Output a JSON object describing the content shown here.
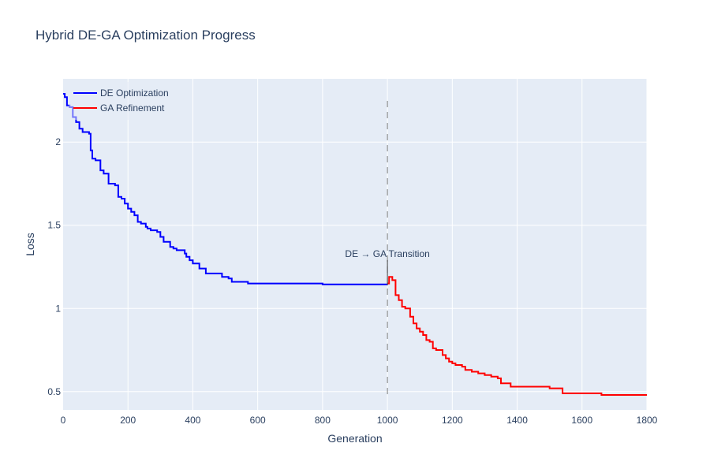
{
  "chart_data": {
    "type": "line",
    "title": "Hybrid DE-GA Optimization Progress",
    "xlabel": "Generation",
    "ylabel": "Loss",
    "xlim": [
      0,
      1800
    ],
    "ylim": [
      0.39,
      2.38
    ],
    "x_ticks": [
      0,
      200,
      400,
      600,
      800,
      1000,
      1200,
      1400,
      1600,
      1800
    ],
    "y_ticks": [
      0.5,
      1,
      1.5,
      2
    ],
    "y_tick_labels": [
      "0.5",
      "1",
      "1.5",
      "2"
    ],
    "grid": true,
    "legend_position": "top-left",
    "series": [
      {
        "name": "DE Optimization",
        "color": "#0000ff",
        "x": [
          0,
          5,
          12,
          20,
          30,
          40,
          50,
          60,
          80,
          85,
          90,
          100,
          115,
          125,
          140,
          160,
          170,
          180,
          190,
          200,
          210,
          220,
          230,
          240,
          255,
          260,
          270,
          290,
          300,
          310,
          330,
          340,
          350,
          375,
          380,
          390,
          400,
          420,
          440,
          450,
          490,
          510,
          520,
          550,
          570,
          660,
          800,
          999
        ],
        "y": [
          2.29,
          2.27,
          2.22,
          2.21,
          2.15,
          2.12,
          2.08,
          2.06,
          2.05,
          1.95,
          1.9,
          1.89,
          1.83,
          1.81,
          1.75,
          1.74,
          1.67,
          1.66,
          1.63,
          1.6,
          1.58,
          1.56,
          1.52,
          1.51,
          1.49,
          1.48,
          1.47,
          1.46,
          1.43,
          1.4,
          1.37,
          1.36,
          1.35,
          1.33,
          1.31,
          1.29,
          1.27,
          1.24,
          1.21,
          1.21,
          1.19,
          1.18,
          1.16,
          1.16,
          1.15,
          1.15,
          1.145,
          1.14
        ]
      },
      {
        "name": "GA Refinement",
        "color": "#ff0000",
        "x": [
          1000,
          1005,
          1015,
          1025,
          1035,
          1045,
          1055,
          1070,
          1080,
          1090,
          1100,
          1110,
          1120,
          1130,
          1140,
          1150,
          1170,
          1180,
          1190,
          1200,
          1210,
          1230,
          1240,
          1260,
          1280,
          1300,
          1320,
          1340,
          1350,
          1380,
          1400,
          1500,
          1540,
          1600,
          1660,
          1720,
          1800
        ],
        "y": [
          1.15,
          1.19,
          1.17,
          1.08,
          1.05,
          1.01,
          1.0,
          0.95,
          0.91,
          0.88,
          0.86,
          0.84,
          0.81,
          0.8,
          0.76,
          0.75,
          0.72,
          0.7,
          0.68,
          0.67,
          0.66,
          0.65,
          0.63,
          0.62,
          0.61,
          0.6,
          0.59,
          0.58,
          0.55,
          0.53,
          0.53,
          0.52,
          0.49,
          0.49,
          0.48,
          0.48,
          0.48
        ]
      }
    ],
    "annotation": {
      "text": "DE → GA Transition",
      "x": 1000,
      "y_tip": 1.14,
      "y_text": 1.31
    },
    "vline": {
      "x": 1000,
      "dash": true,
      "color": "#808080"
    }
  },
  "colors": {
    "plot_bg": "#e5ecf6",
    "grid": "#ffffff",
    "text": "#2a3f5f"
  }
}
